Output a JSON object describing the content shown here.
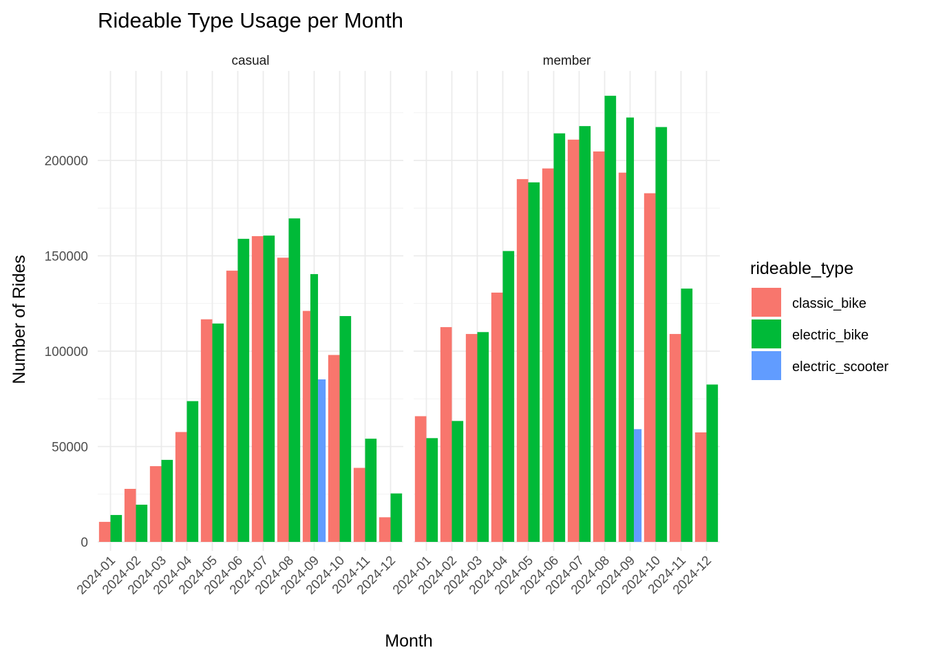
{
  "chart_data": {
    "type": "bar",
    "title": "Rideable Type Usage per Month",
    "xlabel": "Month",
    "ylabel": "Number of Rides",
    "ylim": [
      0,
      240000
    ],
    "yticks": [
      0,
      50000,
      100000,
      150000,
      200000
    ],
    "ytick_labels": [
      "0",
      "50000",
      "100000",
      "150000",
      "200000"
    ],
    "grid": true,
    "legend": {
      "title": "rideable_type",
      "placement": "right"
    },
    "categories": [
      "2024-01",
      "2024-02",
      "2024-03",
      "2024-04",
      "2024-05",
      "2024-06",
      "2024-07",
      "2024-08",
      "2024-09",
      "2024-10",
      "2024-11",
      "2024-12"
    ],
    "series_info": [
      {
        "name": "classic_bike",
        "color": "#F8766D"
      },
      {
        "name": "electric_bike",
        "color": "#00BA38"
      },
      {
        "name": "electric_scooter",
        "color": "#619CFF"
      }
    ],
    "facets": [
      {
        "label": "casual",
        "series": [
          {
            "name": "classic_bike",
            "values": [
              10500,
              27800,
              39700,
              57600,
              116700,
              142200,
              160300,
              149000,
              121100,
              98000,
              38800,
              12900
            ]
          },
          {
            "name": "electric_bike",
            "values": [
              14100,
              19500,
              43000,
              73800,
              114500,
              158900,
              160600,
              169600,
              140400,
              118400,
              54100,
              25400
            ]
          },
          {
            "name": "electric_scooter",
            "values": [
              null,
              null,
              null,
              null,
              null,
              null,
              null,
              null,
              85200,
              null,
              null,
              null
            ]
          }
        ]
      },
      {
        "label": "member",
        "series": [
          {
            "name": "classic_bike",
            "values": [
              65900,
              112600,
              109000,
              130700,
              190200,
              195800,
              210900,
              204700,
              193600,
              182800,
              109000,
              57400
            ]
          },
          {
            "name": "electric_bike",
            "values": [
              54400,
              63400,
              110000,
              152500,
              188500,
              214200,
              218000,
              233900,
              222500,
              217500,
              132800,
              82500
            ]
          },
          {
            "name": "electric_scooter",
            "values": [
              null,
              null,
              null,
              null,
              null,
              null,
              null,
              null,
              59100,
              null,
              null,
              null
            ]
          }
        ]
      }
    ]
  }
}
